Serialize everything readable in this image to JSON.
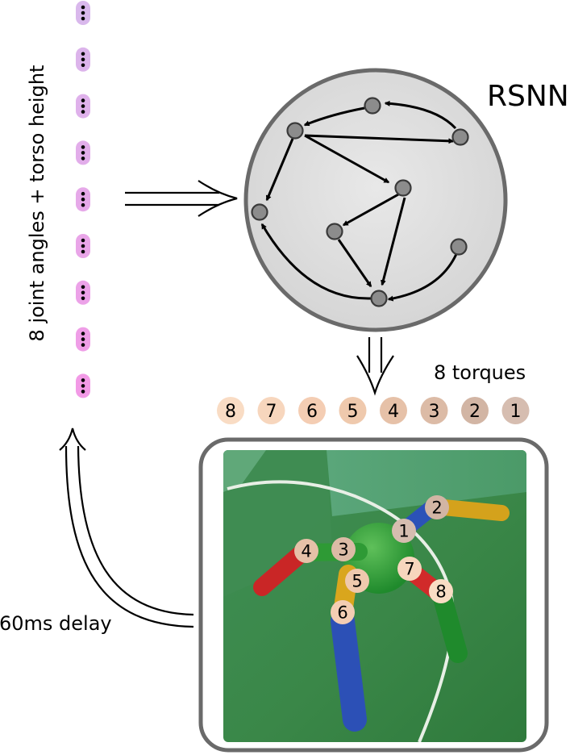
{
  "network_label": "RSNN",
  "input_label": "8 joint angles + torso height",
  "output_label": "8 torques",
  "delay_label": "60ms delay",
  "input_neuron_count": 9,
  "torque_badges": [
    {
      "label": "8",
      "color": "#f9dcc4"
    },
    {
      "label": "7",
      "color": "#f7d6bd"
    },
    {
      "label": "6",
      "color": "#f4cdb3"
    },
    {
      "label": "5",
      "color": "#efc9ad"
    },
    {
      "label": "4",
      "color": "#e6c1a8"
    },
    {
      "label": "3",
      "color": "#dcbba6"
    },
    {
      "label": "2",
      "color": "#d2b5a4"
    },
    {
      "label": "1",
      "color": "#d6bdb0"
    }
  ],
  "joint_badges": [
    "1",
    "2",
    "3",
    "4",
    "5",
    "6",
    "7",
    "8"
  ],
  "colors": {
    "neuron_fill": "#8c8c8c",
    "network_fill": "#dedede",
    "network_stroke": "#666666",
    "frame_stroke": "#666666",
    "input_neuron_top": "#d9b8ec",
    "input_neuron_bottom": "#f29ae6",
    "floor": "#3c8c4c"
  }
}
